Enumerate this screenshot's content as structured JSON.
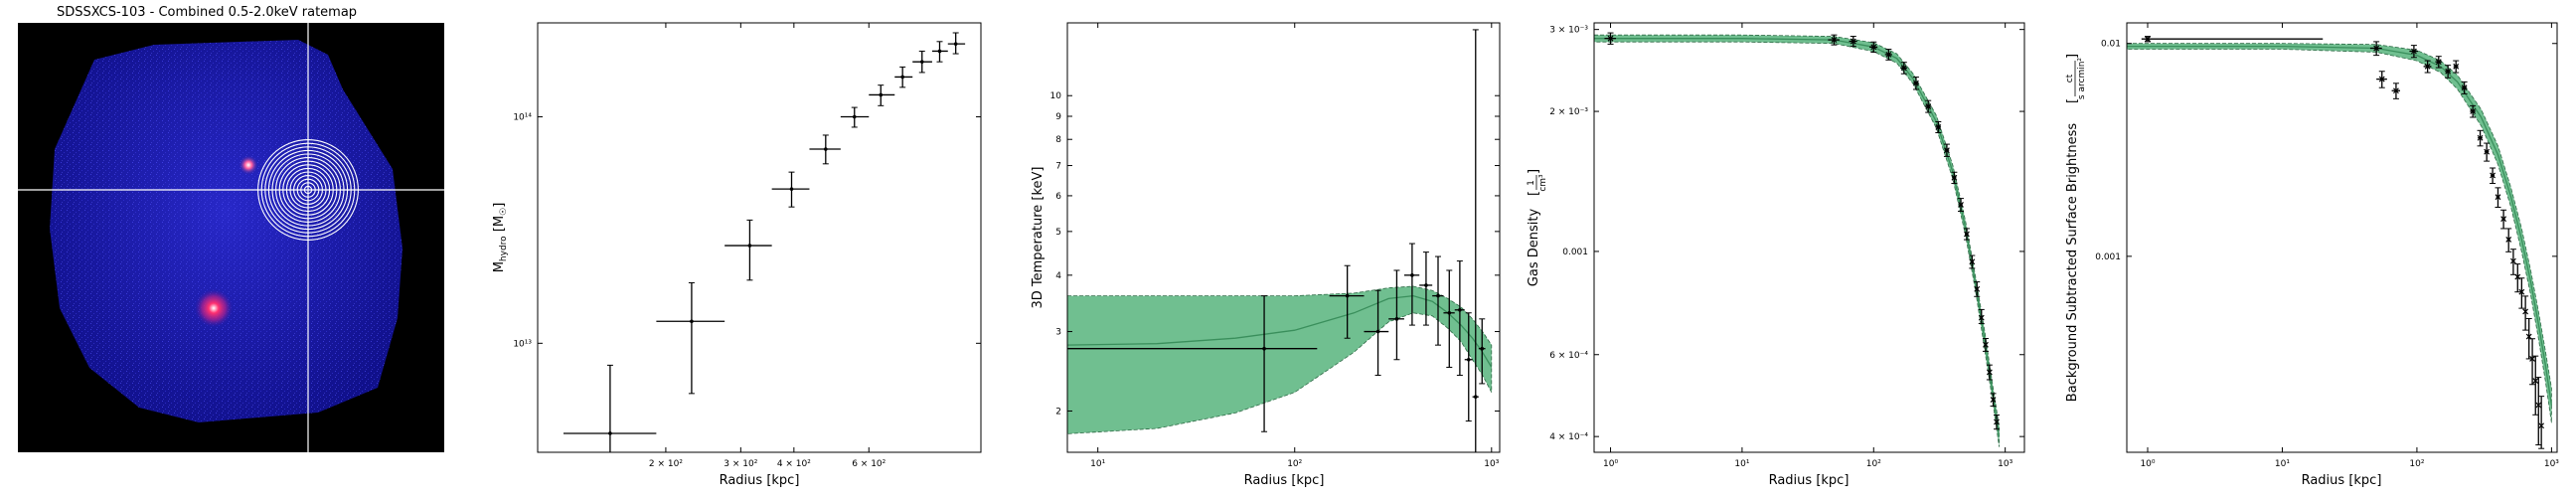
{
  "figure": {
    "image_title": "SDSSXCS-103 - Combined 0.5-2.0keV ratemap"
  },
  "colors": {
    "band": "#4caf74",
    "band_alpha": 0.8,
    "model_line": "#3a8f5c",
    "points": "#000000",
    "ratemap_bg": "#000000",
    "ratemap_field": "#1a1aa8",
    "annulus": "#ffffff"
  },
  "chart_data": [
    {
      "type": "image",
      "title": "SDSSXCS-103 - Combined 0.5-2.0keV ratemap",
      "annuli_count": 14,
      "sources": [
        "bright point source",
        "bright extended source"
      ]
    },
    {
      "type": "scatter",
      "xlabel": "Radius [kpc]",
      "ylabel": "M_hydro [M_☉]",
      "xscale": "log",
      "yscale": "log",
      "xlim": [
        100,
        1100
      ],
      "ylim": [
        3300000000000.0,
        260000000000000.0
      ],
      "x_ticks": [
        200,
        300,
        400,
        600
      ],
      "x_tick_labels": [
        "2 × 10²",
        "3 × 10²",
        "4 × 10²",
        "6 × 10²"
      ],
      "y_ticks": [
        10000000000000.0,
        100000000000000.0
      ],
      "y_tick_labels": [
        "10¹³",
        "10¹⁴"
      ],
      "points": [
        {
          "x": 148,
          "y": 4000000000000.0,
          "xlo": 115,
          "xhi": 190,
          "ylo": 3200000000000.0,
          "yhi": 8000000000000.0
        },
        {
          "x": 230,
          "y": 12500000000000.0,
          "xlo": 190,
          "xhi": 275,
          "ylo": 6000000000000.0,
          "yhi": 18500000000000.0
        },
        {
          "x": 315,
          "y": 27000000000000.0,
          "xlo": 275,
          "xhi": 355,
          "ylo": 19000000000000.0,
          "yhi": 35000000000000.0
        },
        {
          "x": 395,
          "y": 48000000000000.0,
          "xlo": 355,
          "xhi": 435,
          "ylo": 40000000000000.0,
          "yhi": 57000000000000.0
        },
        {
          "x": 475,
          "y": 72000000000000.0,
          "xlo": 435,
          "xhi": 515,
          "ylo": 62000000000000.0,
          "yhi": 83000000000000.0
        },
        {
          "x": 555,
          "y": 100000000000000.0,
          "xlo": 515,
          "xhi": 600,
          "ylo": 90000000000000.0,
          "yhi": 110000000000000.0
        },
        {
          "x": 640,
          "y": 125000000000000.0,
          "xlo": 600,
          "xhi": 690,
          "ylo": 112000000000000.0,
          "yhi": 138000000000000.0
        },
        {
          "x": 720,
          "y": 150000000000000.0,
          "xlo": 690,
          "xhi": 760,
          "ylo": 135000000000000.0,
          "yhi": 166000000000000.0
        },
        {
          "x": 800,
          "y": 175000000000000.0,
          "xlo": 760,
          "xhi": 845,
          "ylo": 157000000000000.0,
          "yhi": 195000000000000.0
        },
        {
          "x": 880,
          "y": 195000000000000.0,
          "xlo": 845,
          "xhi": 920,
          "ylo": 175000000000000.0,
          "yhi": 215000000000000.0
        },
        {
          "x": 960,
          "y": 210000000000000.0,
          "xlo": 920,
          "xhi": 1010,
          "ylo": 190000000000000.0,
          "yhi": 235000000000000.0
        }
      ]
    },
    {
      "type": "scatter",
      "xlabel": "Radius [kpc]",
      "ylabel": "3D Temperature [keV]",
      "xscale": "log",
      "yscale": "log",
      "xlim": [
        7,
        1100
      ],
      "ylim": [
        1.62,
        14.5
      ],
      "x_ticks": [
        10,
        100,
        1000
      ],
      "x_tick_labels": [
        "10¹",
        "10²",
        "10³"
      ],
      "y_ticks": [
        2,
        3,
        4,
        5,
        6,
        7,
        8,
        9,
        10
      ],
      "y_tick_labels": [
        "2",
        "3",
        "4",
        "5",
        "6",
        "7",
        "8",
        "9",
        "10"
      ],
      "model": {
        "x": [
          7,
          20,
          50,
          100,
          200,
          300,
          400,
          500,
          600,
          700,
          800,
          900,
          1000
        ],
        "y": [
          2.8,
          2.82,
          2.9,
          3.02,
          3.3,
          3.55,
          3.6,
          3.5,
          3.3,
          3.1,
          2.9,
          2.7,
          2.5
        ],
        "upper": [
          3.6,
          3.6,
          3.6,
          3.6,
          3.65,
          3.75,
          3.78,
          3.7,
          3.55,
          3.4,
          3.2,
          3.0,
          2.8
        ],
        "lower": [
          1.78,
          1.83,
          1.98,
          2.2,
          2.7,
          3.15,
          3.3,
          3.25,
          3.05,
          2.85,
          2.6,
          2.4,
          2.2
        ]
      },
      "points": [
        {
          "x": 70,
          "y": 2.75,
          "xlo": 7,
          "xhi": 130,
          "ylo": 1.8,
          "yhi": 3.6
        },
        {
          "x": 185,
          "y": 3.6,
          "xlo": 150,
          "xhi": 225,
          "ylo": 2.9,
          "yhi": 4.2
        },
        {
          "x": 265,
          "y": 3.0,
          "xlo": 225,
          "xhi": 300,
          "ylo": 2.4,
          "yhi": 3.7
        },
        {
          "x": 330,
          "y": 3.2,
          "xlo": 300,
          "xhi": 360,
          "ylo": 2.6,
          "yhi": 4.1
        },
        {
          "x": 395,
          "y": 4.0,
          "xlo": 360,
          "xhi": 430,
          "ylo": 3.1,
          "yhi": 4.7
        },
        {
          "x": 465,
          "y": 3.8,
          "xlo": 430,
          "xhi": 500,
          "ylo": 3.1,
          "yhi": 4.5
        },
        {
          "x": 535,
          "y": 3.6,
          "xlo": 500,
          "xhi": 570,
          "ylo": 2.8,
          "yhi": 4.4
        },
        {
          "x": 610,
          "y": 3.3,
          "xlo": 570,
          "xhi": 650,
          "ylo": 2.5,
          "yhi": 4.1
        },
        {
          "x": 690,
          "y": 3.35,
          "xlo": 650,
          "xhi": 730,
          "ylo": 2.4,
          "yhi": 4.3
        },
        {
          "x": 765,
          "y": 2.6,
          "xlo": 730,
          "xhi": 800,
          "ylo": 1.9,
          "yhi": 3.3
        },
        {
          "x": 830,
          "y": 2.15,
          "xlo": 800,
          "xhi": 860,
          "ylo": 1.62,
          "yhi": 14.0
        },
        {
          "x": 895,
          "y": 2.75,
          "xlo": 860,
          "xhi": 930,
          "ylo": 2.3,
          "yhi": 3.2
        }
      ]
    },
    {
      "type": "line",
      "xlabel": "Radius [kpc]",
      "ylabel": "Gas Density [1/cm³]",
      "ylabel_main": "Gas Density",
      "ylabel_unit_num": "1",
      "ylabel_unit_den": "cm³",
      "xscale": "log",
      "yscale": "log",
      "xlim": [
        0.75,
        1400
      ],
      "ylim": [
        0.00037,
        0.0031
      ],
      "x_ticks": [
        1,
        10,
        100,
        1000
      ],
      "x_tick_labels": [
        "10⁰",
        "10¹",
        "10²",
        "10³"
      ],
      "y_ticks": [
        0.003,
        0.002,
        0.001,
        0.0006,
        0.0004
      ],
      "y_tick_labels": [
        "3 × 10⁻³",
        "2 × 10⁻³",
        "0.001",
        "6 × 10⁻⁴",
        "4 × 10⁻⁴"
      ],
      "model": {
        "x": [
          0.75,
          1,
          10,
          50,
          100,
          150,
          200,
          300,
          400,
          500,
          600,
          700,
          800,
          900
        ],
        "y": [
          0.00287,
          0.00287,
          0.00287,
          0.00285,
          0.00275,
          0.0026,
          0.00235,
          0.0019,
          0.00148,
          0.00112,
          0.00084,
          0.00064,
          0.0005,
          0.0004
        ],
        "upper": [
          0.00292,
          0.00292,
          0.00292,
          0.0029,
          0.00281,
          0.00266,
          0.00241,
          0.00196,
          0.00153,
          0.00116,
          0.00087,
          0.00067,
          0.00052,
          0.00042
        ],
        "lower": [
          0.00282,
          0.00282,
          0.00282,
          0.0028,
          0.00269,
          0.00254,
          0.00229,
          0.00184,
          0.00143,
          0.00108,
          0.00081,
          0.00061,
          0.00048,
          0.00038
        ]
      },
      "points": [
        {
          "x": 1.0,
          "y": 0.00287,
          "xlo": 0.9,
          "xhi": 1.1,
          "ylo": 0.00279,
          "yhi": 0.00295
        },
        {
          "x": 50,
          "y": 0.00285,
          "xlo": 45,
          "xhi": 55,
          "ylo": 0.00278,
          "yhi": 0.00292
        },
        {
          "x": 70,
          "y": 0.00283,
          "xlo": 65,
          "xhi": 75,
          "ylo": 0.00276,
          "yhi": 0.0029
        },
        {
          "x": 100,
          "y": 0.00275,
          "xlo": 93,
          "xhi": 107,
          "ylo": 0.00268,
          "yhi": 0.00282
        },
        {
          "x": 130,
          "y": 0.00265,
          "xlo": 122,
          "xhi": 138,
          "ylo": 0.00258,
          "yhi": 0.00272
        },
        {
          "x": 170,
          "y": 0.00248,
          "xlo": 160,
          "xhi": 180,
          "ylo": 0.00241,
          "yhi": 0.00255
        },
        {
          "x": 210,
          "y": 0.0023,
          "xlo": 200,
          "xhi": 220,
          "ylo": 0.00223,
          "yhi": 0.00237
        },
        {
          "x": 260,
          "y": 0.00205,
          "xlo": 245,
          "xhi": 275,
          "ylo": 0.00199,
          "yhi": 0.00211
        },
        {
          "x": 310,
          "y": 0.00185,
          "xlo": 295,
          "xhi": 325,
          "ylo": 0.0018,
          "yhi": 0.0019
        },
        {
          "x": 360,
          "y": 0.00165,
          "xlo": 345,
          "xhi": 375,
          "ylo": 0.0016,
          "yhi": 0.0017
        },
        {
          "x": 410,
          "y": 0.00144,
          "xlo": 395,
          "xhi": 425,
          "ylo": 0.0014,
          "yhi": 0.00148
        },
        {
          "x": 460,
          "y": 0.00126,
          "xlo": 445,
          "xhi": 475,
          "ylo": 0.00122,
          "yhi": 0.0013
        },
        {
          "x": 510,
          "y": 0.00109,
          "xlo": 495,
          "xhi": 525,
          "ylo": 0.00106,
          "yhi": 0.00112
        },
        {
          "x": 560,
          "y": 0.00095,
          "xlo": 545,
          "xhi": 575,
          "ylo": 0.00092,
          "yhi": 0.00098
        },
        {
          "x": 610,
          "y": 0.00083,
          "xlo": 595,
          "xhi": 625,
          "ylo": 0.0008,
          "yhi": 0.00086
        },
        {
          "x": 660,
          "y": 0.00072,
          "xlo": 645,
          "xhi": 675,
          "ylo": 0.0007,
          "yhi": 0.00075
        },
        {
          "x": 710,
          "y": 0.00063,
          "xlo": 695,
          "xhi": 725,
          "ylo": 0.00061,
          "yhi": 0.00065
        },
        {
          "x": 760,
          "y": 0.00055,
          "xlo": 745,
          "xhi": 775,
          "ylo": 0.00053,
          "yhi": 0.00057
        },
        {
          "x": 810,
          "y": 0.00048,
          "xlo": 795,
          "xhi": 825,
          "ylo": 0.000465,
          "yhi": 0.000495
        },
        {
          "x": 860,
          "y": 0.00043,
          "xlo": 845,
          "xhi": 875,
          "ylo": 0.000415,
          "yhi": 0.000445
        }
      ]
    },
    {
      "type": "scatter",
      "xlabel": "Radius [kpc]",
      "ylabel": "Background Subtracted Surface Brightness [ct/(s arcmin²)]",
      "ylabel_main": "Background Subtracted Surface Brightness",
      "ylabel_unit_num": "ct",
      "ylabel_unit_den": "s arcmin²",
      "xscale": "log",
      "yscale": "log",
      "xlim": [
        0.7,
        1100
      ],
      "ylim": [
        0.00012,
        0.0125
      ],
      "x_ticks": [
        1,
        10,
        100,
        1000
      ],
      "x_tick_labels": [
        "10⁰",
        "10¹",
        "10²",
        "10³"
      ],
      "y_ticks": [
        0.01,
        0.001
      ],
      "y_tick_labels": [
        "0.01",
        "0.001"
      ],
      "model": {
        "x": [
          0.7,
          1,
          10,
          50,
          100,
          150,
          200,
          300,
          400,
          500,
          600,
          700,
          800,
          900,
          1000
        ],
        "y": [
          0.0097,
          0.0097,
          0.0097,
          0.0095,
          0.0088,
          0.0078,
          0.0066,
          0.0045,
          0.003,
          0.0019,
          0.0012,
          0.00076,
          0.00048,
          0.00031,
          0.0002
        ],
        "upper": [
          0.01,
          0.01,
          0.01,
          0.0099,
          0.0093,
          0.0083,
          0.0071,
          0.0049,
          0.0033,
          0.0021,
          0.00135,
          0.00086,
          0.00055,
          0.00036,
          0.00024
        ],
        "lower": [
          0.0094,
          0.0094,
          0.0094,
          0.0091,
          0.0083,
          0.0073,
          0.0061,
          0.0041,
          0.0027,
          0.0017,
          0.00105,
          0.00066,
          0.00041,
          0.00026,
          0.000165
        ]
      },
      "points": [
        {
          "x": 1.0,
          "y": 0.0105,
          "xlo": 0.9,
          "xhi": 20,
          "ylo": 0.0102,
          "yhi": 0.0108
        },
        {
          "x": 50,
          "y": 0.0095,
          "xlo": 45,
          "xhi": 55,
          "ylo": 0.0088,
          "yhi": 0.0102
        },
        {
          "x": 55,
          "y": 0.0068,
          "xlo": 50,
          "xhi": 60,
          "ylo": 0.0062,
          "yhi": 0.0074
        },
        {
          "x": 70,
          "y": 0.006,
          "xlo": 65,
          "xhi": 75,
          "ylo": 0.0055,
          "yhi": 0.0065
        },
        {
          "x": 95,
          "y": 0.0092,
          "xlo": 88,
          "xhi": 102,
          "ylo": 0.0086,
          "yhi": 0.0098
        },
        {
          "x": 120,
          "y": 0.0078,
          "xlo": 112,
          "xhi": 128,
          "ylo": 0.0073,
          "yhi": 0.0083
        },
        {
          "x": 145,
          "y": 0.0082,
          "xlo": 137,
          "xhi": 153,
          "ylo": 0.0077,
          "yhi": 0.0087
        },
        {
          "x": 170,
          "y": 0.0074,
          "xlo": 162,
          "xhi": 178,
          "ylo": 0.0069,
          "yhi": 0.0079
        },
        {
          "x": 195,
          "y": 0.0078,
          "xlo": 187,
          "xhi": 203,
          "ylo": 0.0073,
          "yhi": 0.0083
        },
        {
          "x": 225,
          "y": 0.0062,
          "xlo": 215,
          "xhi": 235,
          "ylo": 0.0058,
          "yhi": 0.0066
        },
        {
          "x": 260,
          "y": 0.0048,
          "xlo": 248,
          "xhi": 272,
          "ylo": 0.0045,
          "yhi": 0.0051
        },
        {
          "x": 295,
          "y": 0.0036,
          "xlo": 283,
          "xhi": 307,
          "ylo": 0.0033,
          "yhi": 0.0039
        },
        {
          "x": 330,
          "y": 0.0031,
          "xlo": 318,
          "xhi": 342,
          "ylo": 0.0028,
          "yhi": 0.0034
        },
        {
          "x": 365,
          "y": 0.0024,
          "xlo": 353,
          "xhi": 377,
          "ylo": 0.0022,
          "yhi": 0.0026
        },
        {
          "x": 400,
          "y": 0.0019,
          "xlo": 388,
          "xhi": 412,
          "ylo": 0.0017,
          "yhi": 0.0021
        },
        {
          "x": 440,
          "y": 0.0015,
          "xlo": 428,
          "xhi": 452,
          "ylo": 0.00135,
          "yhi": 0.00165
        },
        {
          "x": 480,
          "y": 0.0012,
          "xlo": 468,
          "xhi": 492,
          "ylo": 0.00105,
          "yhi": 0.00135
        },
        {
          "x": 520,
          "y": 0.00095,
          "xlo": 508,
          "xhi": 532,
          "ylo": 0.00082,
          "yhi": 0.00108
        },
        {
          "x": 560,
          "y": 0.0008,
          "xlo": 548,
          "xhi": 572,
          "ylo": 0.00068,
          "yhi": 0.00092
        },
        {
          "x": 600,
          "y": 0.00068,
          "xlo": 588,
          "xhi": 612,
          "ylo": 0.00057,
          "yhi": 0.00079
        },
        {
          "x": 640,
          "y": 0.00055,
          "xlo": 628,
          "xhi": 652,
          "ylo": 0.00045,
          "yhi": 0.00065
        },
        {
          "x": 680,
          "y": 0.00042,
          "xlo": 668,
          "xhi": 692,
          "ylo": 0.00033,
          "yhi": 0.00051
        },
        {
          "x": 720,
          "y": 0.00033,
          "xlo": 708,
          "xhi": 732,
          "ylo": 0.00025,
          "yhi": 0.00041
        },
        {
          "x": 760,
          "y": 0.00026,
          "xlo": 748,
          "xhi": 772,
          "ylo": 0.00018,
          "yhi": 0.00034
        },
        {
          "x": 800,
          "y": 0.0002,
          "xlo": 788,
          "xhi": 812,
          "ylo": 0.00013,
          "yhi": 0.00027
        },
        {
          "x": 840,
          "y": 0.00016,
          "xlo": 828,
          "xhi": 852,
          "ylo": 0.000125,
          "yhi": 0.00022
        }
      ]
    }
  ]
}
